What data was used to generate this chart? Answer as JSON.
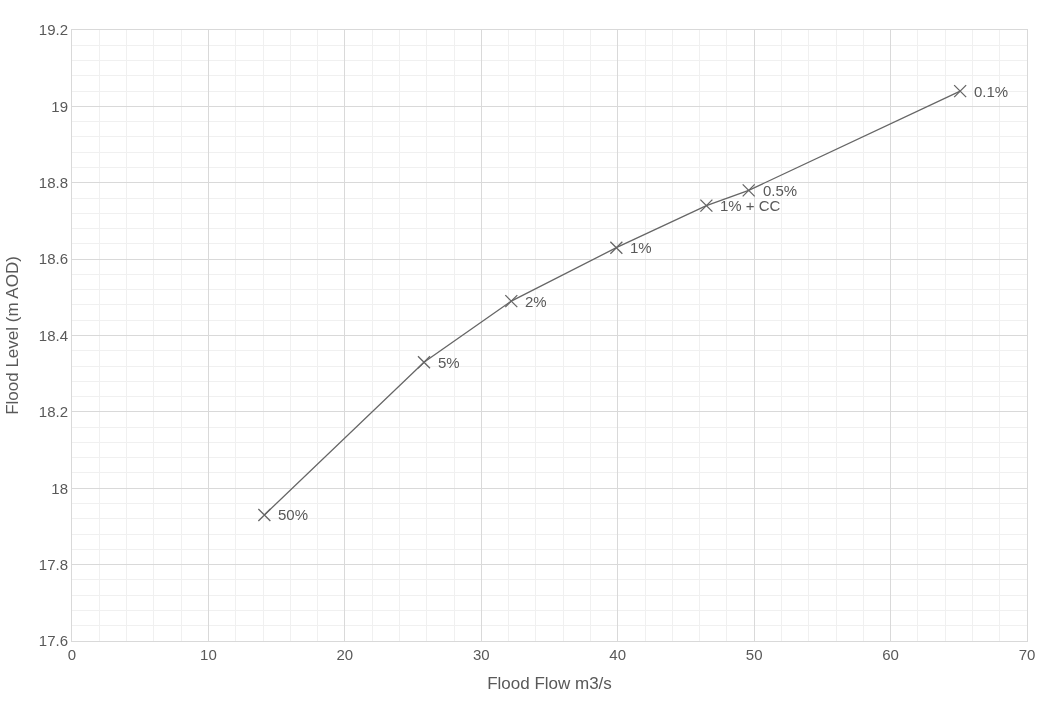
{
  "chart_data": {
    "type": "line",
    "xlabel": "Flood Flow m3/s",
    "ylabel": "Flood Level (m AOD)",
    "x": [
      14.1,
      25.8,
      32.2,
      39.9,
      46.5,
      49.6,
      65.1
    ],
    "series": [
      {
        "color": "#666666",
        "values": [
          17.93,
          18.33,
          18.49,
          18.63,
          18.74,
          18.78,
          19.04
        ]
      }
    ],
    "xlim": [
      0,
      70
    ],
    "xticks": [
      0,
      10,
      20,
      30,
      40,
      50,
      60,
      70
    ],
    "ylim": [
      17.6,
      19.2
    ],
    "yticks": [
      17.6,
      17.8,
      18,
      18.2,
      18.4,
      18.6,
      18.8,
      19,
      19.2
    ],
    "grid": true,
    "marker": "cross",
    "line_style": "solid",
    "annotations": [
      {
        "text": "50%",
        "x": 14.1,
        "y": 17.93
      },
      {
        "text": "5%",
        "x": 25.8,
        "y": 18.33
      },
      {
        "text": "2%",
        "x": 32.2,
        "y": 18.49
      },
      {
        "text": "1%",
        "x": 39.9,
        "y": 18.63
      },
      {
        "text": "1% + CC",
        "x": 46.5,
        "y": 18.74
      },
      {
        "text": "0.5%",
        "x": 49.6,
        "y": 18.78
      },
      {
        "text": "0.1%",
        "x": 65.1,
        "y": 19.04
      }
    ]
  }
}
